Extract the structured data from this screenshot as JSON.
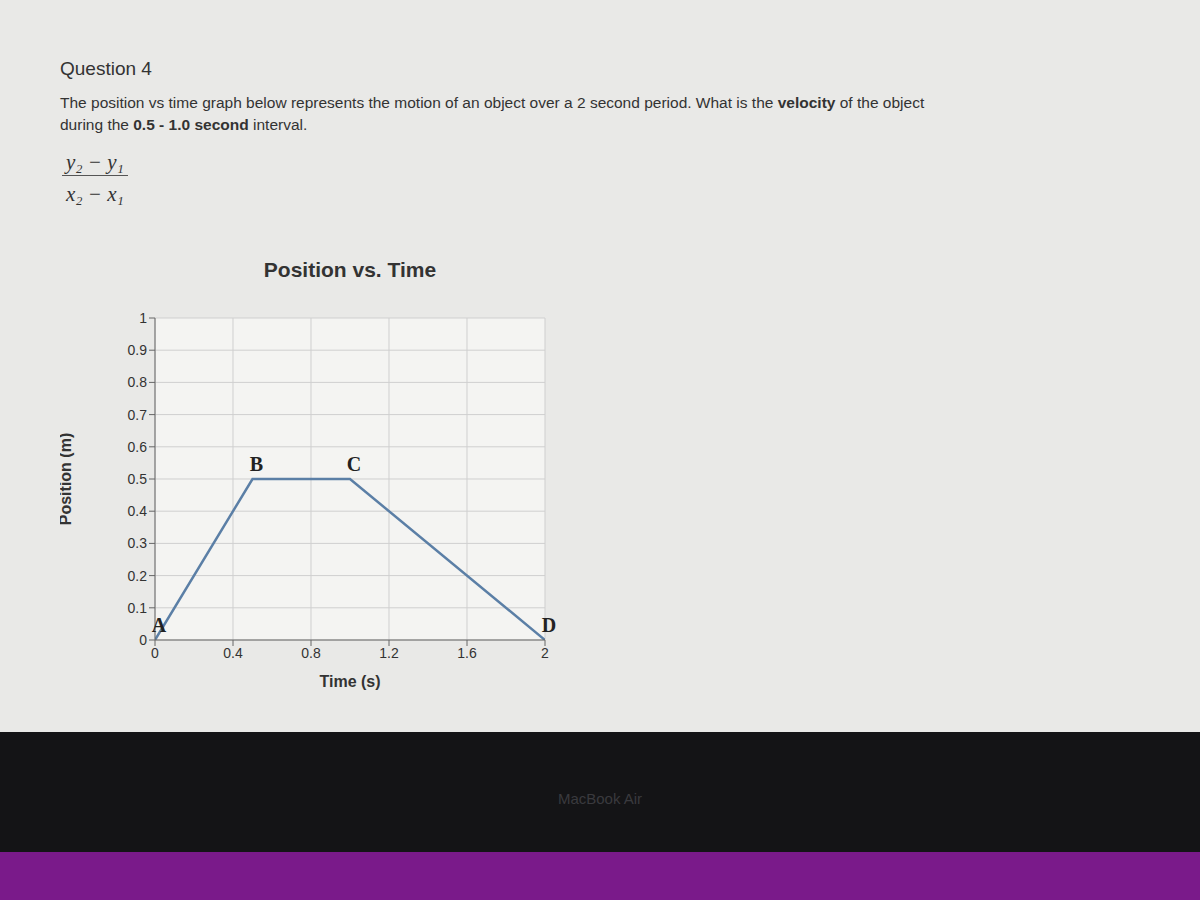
{
  "question": {
    "heading": "Question 4",
    "text_before": "The position vs time graph below represents the motion of an object over a 2 second period. What is the ",
    "text_bold_1": "velocity",
    "text_middle": " of the object during the ",
    "text_bold_2": "0.5 - 1.0 second",
    "text_after": " interval.",
    "formula": {
      "numerator": "y₂ − y₁",
      "denominator": "x₂ − x₁"
    }
  },
  "bezel_text": "MacBook Air",
  "chart_data": {
    "type": "line",
    "title": "Position vs. Time",
    "x_label": "Time (s)",
    "y_label": "Position (m)",
    "x": [
      0,
      0.5,
      1.0,
      2.0
    ],
    "values": [
      0,
      0.5,
      0.5,
      0
    ],
    "point_labels": [
      "A",
      "B",
      "C",
      "D"
    ],
    "color": "#5b7fa6",
    "xlim": [
      0,
      2
    ],
    "xticks": [
      0,
      0.4,
      0.8,
      1.2,
      1.6,
      2
    ],
    "ylim": [
      0,
      1
    ],
    "yticks": [
      0,
      0.1,
      0.2,
      0.3,
      0.4,
      0.5,
      0.6,
      0.7,
      0.8,
      0.9,
      1
    ],
    "grid": true
  }
}
